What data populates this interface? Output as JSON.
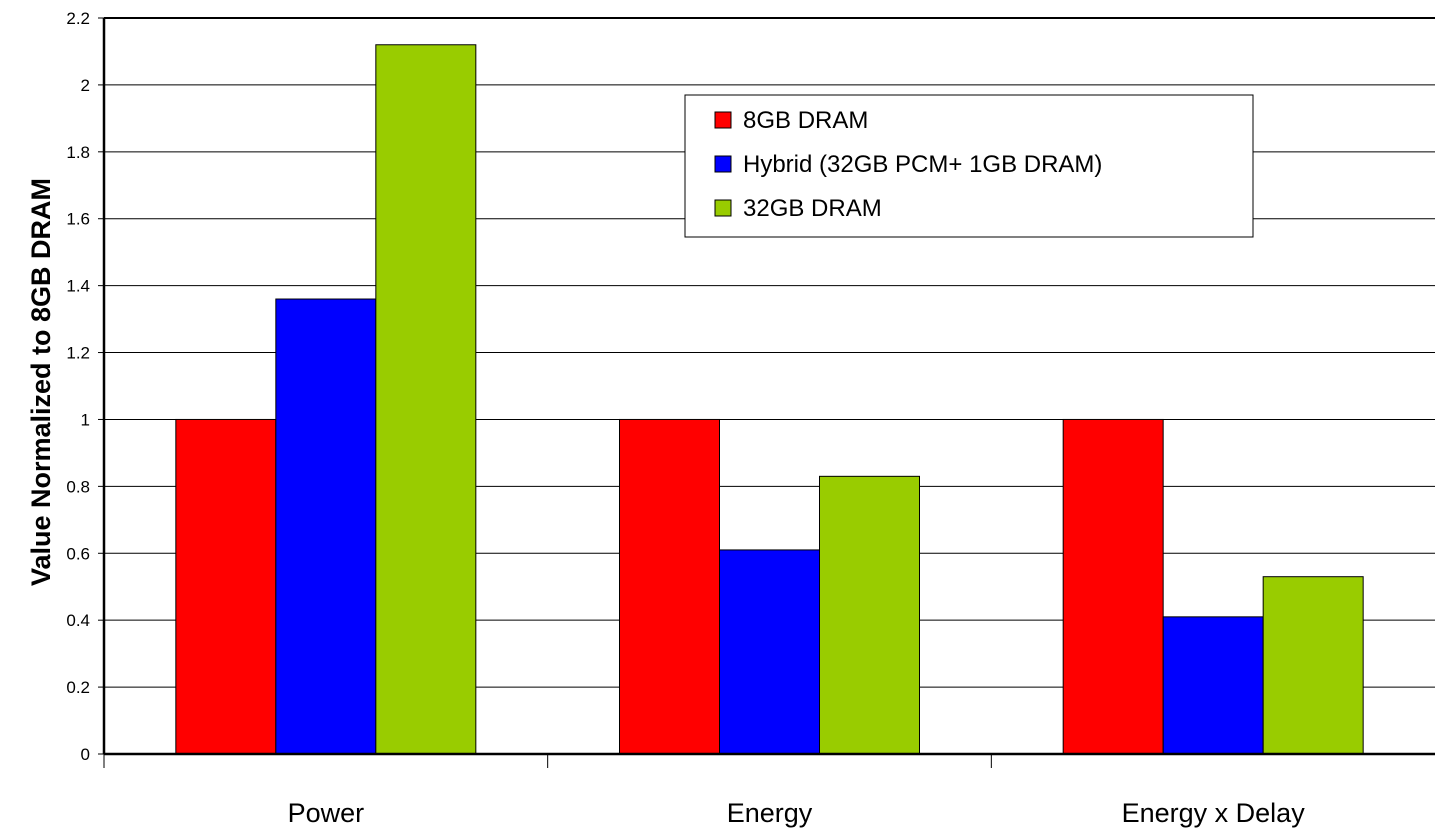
{
  "chart_data": {
    "type": "bar",
    "title": "",
    "xlabel": "",
    "ylabel": "Value Normalized to 8GB DRAM",
    "ylim": [
      0,
      2.2
    ],
    "yticks": [
      "0",
      "0.2",
      "0.4",
      "0.6",
      "0.8",
      "1",
      "1.2",
      "1.4",
      "1.6",
      "1.8",
      "2",
      "2.2"
    ],
    "grid": true,
    "legend_position": "top-right",
    "categories": [
      "Power",
      "Energy",
      "Energy x Delay"
    ],
    "series": [
      {
        "name": "8GB DRAM",
        "color": "#ff0000",
        "values": [
          1.0,
          1.0,
          1.0
        ]
      },
      {
        "name": "Hybrid (32GB PCM+ 1GB DRAM)",
        "color": "#0000ff",
        "values": [
          1.36,
          0.61,
          0.41
        ]
      },
      {
        "name": "32GB DRAM",
        "color": "#99cc00",
        "values": [
          2.12,
          0.83,
          0.53
        ]
      }
    ]
  }
}
